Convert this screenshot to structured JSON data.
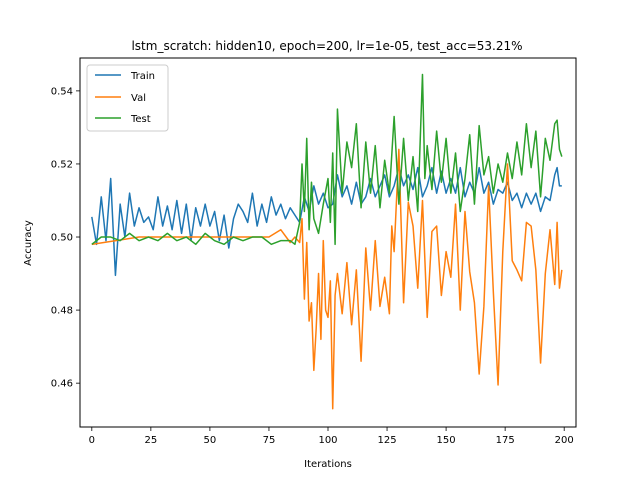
{
  "chart_data": {
    "type": "line",
    "title": "lstm_scratch: hidden10, epoch=200, lr=1e-05, test_acc=53.21%",
    "xlabel": "Iterations",
    "ylabel": "Accuracy",
    "xlim": [
      -5,
      205
    ],
    "ylim": [
      0.448,
      0.549
    ],
    "xticks": [
      0,
      25,
      50,
      75,
      100,
      125,
      150,
      175,
      200
    ],
    "xtick_labels": [
      "0",
      "25",
      "50",
      "75",
      "100",
      "125",
      "150",
      "175",
      "200"
    ],
    "yticks": [
      0.46,
      0.48,
      0.5,
      0.52,
      0.54
    ],
    "ytick_labels": [
      "0.46",
      "0.48",
      "0.50",
      "0.52",
      "0.54"
    ],
    "grid": false,
    "legend_loc": "upper left",
    "series": [
      {
        "name": "Train",
        "color": "#1f77b4",
        "keypoints": [
          [
            0,
            0.5055
          ],
          [
            2,
            0.498
          ],
          [
            4,
            0.511
          ],
          [
            6,
            0.499
          ],
          [
            8,
            0.516
          ],
          [
            10,
            0.4895
          ],
          [
            12,
            0.509
          ],
          [
            14,
            0.5
          ],
          [
            16,
            0.512
          ],
          [
            18,
            0.503
          ],
          [
            20,
            0.508
          ],
          [
            22,
            0.504
          ],
          [
            24,
            0.5055
          ],
          [
            26,
            0.502
          ],
          [
            28,
            0.511
          ],
          [
            30,
            0.503
          ],
          [
            32,
            0.5085
          ],
          [
            34,
            0.502
          ],
          [
            36,
            0.51
          ],
          [
            38,
            0.501
          ],
          [
            40,
            0.509
          ],
          [
            42,
            0.499
          ],
          [
            44,
            0.508
          ],
          [
            46,
            0.503
          ],
          [
            48,
            0.509
          ],
          [
            50,
            0.503
          ],
          [
            52,
            0.507
          ],
          [
            54,
            0.499
          ],
          [
            56,
            0.506
          ],
          [
            58,
            0.497
          ],
          [
            60,
            0.505
          ],
          [
            62,
            0.509
          ],
          [
            64,
            0.507
          ],
          [
            66,
            0.504
          ],
          [
            68,
            0.512
          ],
          [
            70,
            0.503
          ],
          [
            72,
            0.509
          ],
          [
            74,
            0.504
          ],
          [
            76,
            0.511
          ],
          [
            78,
            0.506
          ],
          [
            80,
            0.509
          ],
          [
            82,
            0.505
          ],
          [
            84,
            0.508
          ],
          [
            86,
            0.506
          ],
          [
            88,
            0.504
          ],
          [
            90,
            0.511
          ],
          [
            92,
            0.507
          ],
          [
            94,
            0.514
          ],
          [
            96,
            0.509
          ],
          [
            98,
            0.512
          ],
          [
            100,
            0.508
          ],
          [
            102,
            0.509
          ],
          [
            104,
            0.517
          ],
          [
            106,
            0.511
          ],
          [
            108,
            0.514
          ],
          [
            110,
            0.509
          ],
          [
            112,
            0.515
          ],
          [
            114,
            0.509
          ],
          [
            116,
            0.511
          ],
          [
            118,
            0.516
          ],
          [
            120,
            0.511
          ],
          [
            122,
            0.514
          ],
          [
            124,
            0.517
          ],
          [
            126,
            0.511
          ],
          [
            128,
            0.514
          ],
          [
            130,
            0.519
          ],
          [
            132,
            0.514
          ],
          [
            134,
            0.517
          ],
          [
            136,
            0.513
          ],
          [
            138,
            0.519
          ],
          [
            140,
            0.511
          ],
          [
            142,
            0.514
          ],
          [
            144,
            0.519
          ],
          [
            146,
            0.512
          ],
          [
            148,
            0.518
          ],
          [
            150,
            0.512
          ],
          [
            152,
            0.516
          ],
          [
            154,
            0.512
          ],
          [
            156,
            0.519
          ],
          [
            158,
            0.511
          ],
          [
            160,
            0.515
          ],
          [
            162,
            0.512
          ],
          [
            164,
            0.519
          ],
          [
            166,
            0.512
          ],
          [
            168,
            0.515
          ],
          [
            170,
            0.509
          ],
          [
            172,
            0.513
          ],
          [
            174,
            0.512
          ],
          [
            176,
            0.515
          ],
          [
            178,
            0.51
          ],
          [
            180,
            0.512
          ],
          [
            182,
            0.508
          ],
          [
            184,
            0.512
          ],
          [
            186,
            0.509
          ],
          [
            188,
            0.512
          ],
          [
            190,
            0.507
          ],
          [
            192,
            0.511
          ],
          [
            194,
            0.51
          ],
          [
            196,
            0.517
          ],
          [
            197,
            0.519
          ],
          [
            198,
            0.514
          ],
          [
            199,
            0.514
          ]
        ]
      },
      {
        "name": "Val",
        "color": "#ff7f0e",
        "keypoints": [
          [
            0,
            0.498
          ],
          [
            20,
            0.5
          ],
          [
            40,
            0.5
          ],
          [
            60,
            0.5
          ],
          [
            75,
            0.5
          ],
          [
            80,
            0.502
          ],
          [
            84,
            0.4985
          ],
          [
            86,
            0.5
          ],
          [
            88,
            0.4985
          ],
          [
            89,
            0.505
          ],
          [
            90,
            0.483
          ],
          [
            91,
            0.4985
          ],
          [
            92,
            0.477
          ],
          [
            93,
            0.482
          ],
          [
            94,
            0.4635
          ],
          [
            95,
            0.475
          ],
          [
            96,
            0.49
          ],
          [
            97,
            0.472
          ],
          [
            98,
            0.499
          ],
          [
            99,
            0.48
          ],
          [
            100,
            0.478
          ],
          [
            101,
            0.488
          ],
          [
            102,
            0.453
          ],
          [
            103,
            0.484
          ],
          [
            104,
            0.49
          ],
          [
            106,
            0.479
          ],
          [
            108,
            0.493
          ],
          [
            110,
            0.476
          ],
          [
            112,
            0.491
          ],
          [
            114,
            0.466
          ],
          [
            116,
            0.497
          ],
          [
            118,
            0.48
          ],
          [
            120,
            0.499
          ],
          [
            122,
            0.481
          ],
          [
            124,
            0.489
          ],
          [
            126,
            0.479
          ],
          [
            127,
            0.503
          ],
          [
            128,
            0.496
          ],
          [
            130,
            0.524
          ],
          [
            132,
            0.482
          ],
          [
            134,
            0.5095
          ],
          [
            136,
            0.503
          ],
          [
            138,
            0.486
          ],
          [
            140,
            0.51
          ],
          [
            142,
            0.478
          ],
          [
            144,
            0.5015
          ],
          [
            146,
            0.503
          ],
          [
            148,
            0.484
          ],
          [
            150,
            0.496
          ],
          [
            152,
            0.489
          ],
          [
            154,
            0.509
          ],
          [
            156,
            0.48
          ],
          [
            158,
            0.507
          ],
          [
            160,
            0.4905
          ],
          [
            162,
            0.482
          ],
          [
            164,
            0.4625
          ],
          [
            166,
            0.481
          ],
          [
            168,
            0.514
          ],
          [
            170,
            0.485
          ],
          [
            172,
            0.4595
          ],
          [
            174,
            0.496
          ],
          [
            176,
            0.52
          ],
          [
            178,
            0.4935
          ],
          [
            180,
            0.491
          ],
          [
            182,
            0.488
          ],
          [
            184,
            0.504
          ],
          [
            186,
            0.503
          ],
          [
            188,
            0.491
          ],
          [
            190,
            0.4655
          ],
          [
            192,
            0.49
          ],
          [
            194,
            0.502
          ],
          [
            196,
            0.487
          ],
          [
            197,
            0.504
          ],
          [
            198,
            0.486
          ],
          [
            199,
            0.491
          ]
        ]
      },
      {
        "name": "Test",
        "color": "#2ca02c",
        "keypoints": [
          [
            0,
            0.498
          ],
          [
            4,
            0.5
          ],
          [
            8,
            0.5
          ],
          [
            12,
            0.499
          ],
          [
            16,
            0.501
          ],
          [
            20,
            0.499
          ],
          [
            24,
            0.5
          ],
          [
            28,
            0.499
          ],
          [
            32,
            0.501
          ],
          [
            36,
            0.499
          ],
          [
            40,
            0.5
          ],
          [
            44,
            0.498
          ],
          [
            48,
            0.501
          ],
          [
            52,
            0.499
          ],
          [
            56,
            0.498
          ],
          [
            60,
            0.5
          ],
          [
            64,
            0.499
          ],
          [
            68,
            0.5
          ],
          [
            72,
            0.5
          ],
          [
            76,
            0.498
          ],
          [
            80,
            0.499
          ],
          [
            84,
            0.499
          ],
          [
            86,
            0.498
          ],
          [
            88,
            0.504
          ],
          [
            89,
            0.52
          ],
          [
            90,
            0.507
          ],
          [
            91,
            0.527
          ],
          [
            92,
            0.502
          ],
          [
            93,
            0.515
          ],
          [
            94,
            0.505
          ],
          [
            96,
            0.501
          ],
          [
            98,
            0.509
          ],
          [
            100,
            0.516
          ],
          [
            101,
            0.504
          ],
          [
            102,
            0.523
          ],
          [
            103,
            0.498
          ],
          [
            104,
            0.535
          ],
          [
            106,
            0.512
          ],
          [
            108,
            0.526
          ],
          [
            110,
            0.519
          ],
          [
            112,
            0.531
          ],
          [
            114,
            0.508
          ],
          [
            116,
            0.526
          ],
          [
            118,
            0.512
          ],
          [
            120,
            0.525
          ],
          [
            122,
            0.508
          ],
          [
            124,
            0.521
          ],
          [
            126,
            0.512
          ],
          [
            128,
            0.533
          ],
          [
            130,
            0.509
          ],
          [
            132,
            0.527
          ],
          [
            134,
            0.51
          ],
          [
            136,
            0.522
          ],
          [
            138,
            0.507
          ],
          [
            140,
            0.5445
          ],
          [
            141,
            0.516
          ],
          [
            142,
            0.525
          ],
          [
            144,
            0.513
          ],
          [
            146,
            0.529
          ],
          [
            148,
            0.515
          ],
          [
            150,
            0.527
          ],
          [
            152,
            0.512
          ],
          [
            154,
            0.523
          ],
          [
            156,
            0.507
          ],
          [
            158,
            0.516
          ],
          [
            160,
            0.528
          ],
          [
            162,
            0.509
          ],
          [
            164,
            0.5305
          ],
          [
            166,
            0.517
          ],
          [
            168,
            0.522
          ],
          [
            170,
            0.512
          ],
          [
            172,
            0.52
          ],
          [
            174,
            0.515
          ],
          [
            176,
            0.523
          ],
          [
            178,
            0.516
          ],
          [
            180,
            0.526
          ],
          [
            182,
            0.517
          ],
          [
            184,
            0.531
          ],
          [
            186,
            0.519
          ],
          [
            188,
            0.529
          ],
          [
            190,
            0.511
          ],
          [
            192,
            0.527
          ],
          [
            194,
            0.521
          ],
          [
            196,
            0.531
          ],
          [
            197,
            0.532
          ],
          [
            198,
            0.524
          ],
          [
            199,
            0.522
          ]
        ]
      }
    ]
  }
}
